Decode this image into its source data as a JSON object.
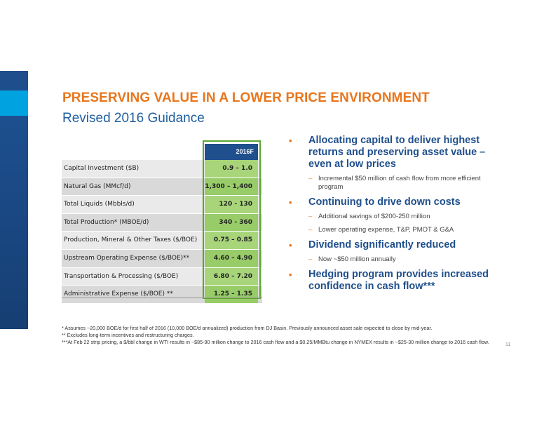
{
  "slide": {
    "title": "PRESERVING VALUE IN A LOWER PRICE ENVIRONMENT",
    "subtitle": "Revised 2016 Guidance",
    "page_number": "11"
  },
  "table": {
    "column_header": "2016F",
    "rows": [
      {
        "label": "Capital Investment ($B)",
        "value": "0.9 – 1.0"
      },
      {
        "label": "Natural Gas (MMcf/d)",
        "value": "1,300 – 1,400"
      },
      {
        "label": "Total Liquids (Mbbls/d)",
        "value": "120 - 130"
      },
      {
        "label": "Total Production* (MBOE/d)",
        "value": "340 - 360"
      },
      {
        "label": "Production, Mineral & Other Taxes ($/BOE)",
        "value": "0.75 – 0.85"
      },
      {
        "label": "Upstream Operating Expense ($/BOE)**",
        "value": "4.60 – 4.90"
      },
      {
        "label": "Transportation & Processing ($/BOE)",
        "value": "6.80 – 7.20"
      },
      {
        "label": "Administrative Expense  ($/BOE) **",
        "value": "1.25 – 1.35"
      }
    ]
  },
  "bullets": [
    {
      "text": "Allocating capital to deliver highest returns and preserving asset value – even at low prices",
      "subs": [
        "Incremental $50 million of cash flow from more efficient program"
      ]
    },
    {
      "text": "Continuing to drive down costs",
      "subs": [
        "Additional savings of $200-250 million",
        "Lower operating expense, T&P, PMOT & G&A"
      ]
    },
    {
      "text": "Dividend significantly reduced",
      "subs": [
        "Now ~$50 million annually"
      ]
    },
    {
      "text": "Hedging program provides increased confidence in cash flow***",
      "subs": []
    }
  ],
  "footnotes": [
    "* Assumes ~20,000 BOE/d for first half of 2016 (10,000 BOE/d annualized) production from DJ Basin. Previously announced asset sale expected to close by mid-year.",
    "** Excludes long-term incentives and restructuring charges.",
    "***At Feb 22 strip pricing, a $/bbl change in WTI results in ~$85-90 million change to 2016 cash flow and a $0.25/MMBtu  change in NYMEX results in ~$25-30 million change to 2016 cash flow."
  ],
  "colors": {
    "title": "#e8761d",
    "subtitle": "#1f5f9f",
    "header_fill": "#1f4f8c",
    "value_fill": "#a8d57a",
    "value_border": "#5aa630"
  }
}
